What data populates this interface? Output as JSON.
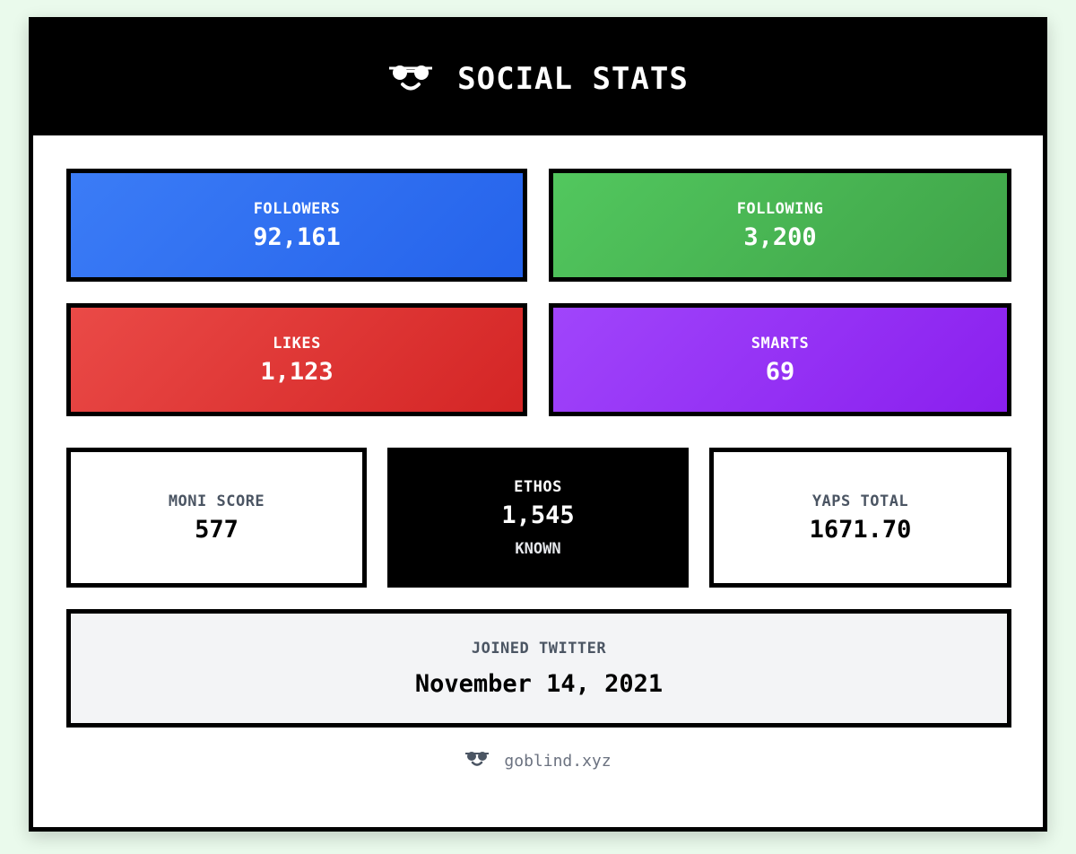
{
  "header": {
    "title": "SOCIAL STATS",
    "logo_icon": "sunglasses-smile-icon"
  },
  "stats": {
    "followers": {
      "label": "FOLLOWERS",
      "value": "92,161",
      "color": "#3b7cf6"
    },
    "following": {
      "label": "FOLLOWING",
      "value": "3,200",
      "color": "#52c75e"
    },
    "likes": {
      "label": "LIKES",
      "value": "1,123",
      "color": "#ea4a47"
    },
    "smarts": {
      "label": "SMARTS",
      "value": "69",
      "color": "#a045fb"
    }
  },
  "scores": {
    "moni": {
      "label": "MONI SCORE",
      "value": "577"
    },
    "ethos": {
      "label": "ETHOS",
      "value": "1,545",
      "sub": "KNOWN"
    },
    "yaps": {
      "label": "YAPS TOTAL",
      "value": "1671.70"
    }
  },
  "joined": {
    "label": "JOINED TWITTER",
    "value": "November 14, 2021"
  },
  "footer": {
    "text": "goblind.xyz",
    "icon": "sunglasses-icon"
  }
}
